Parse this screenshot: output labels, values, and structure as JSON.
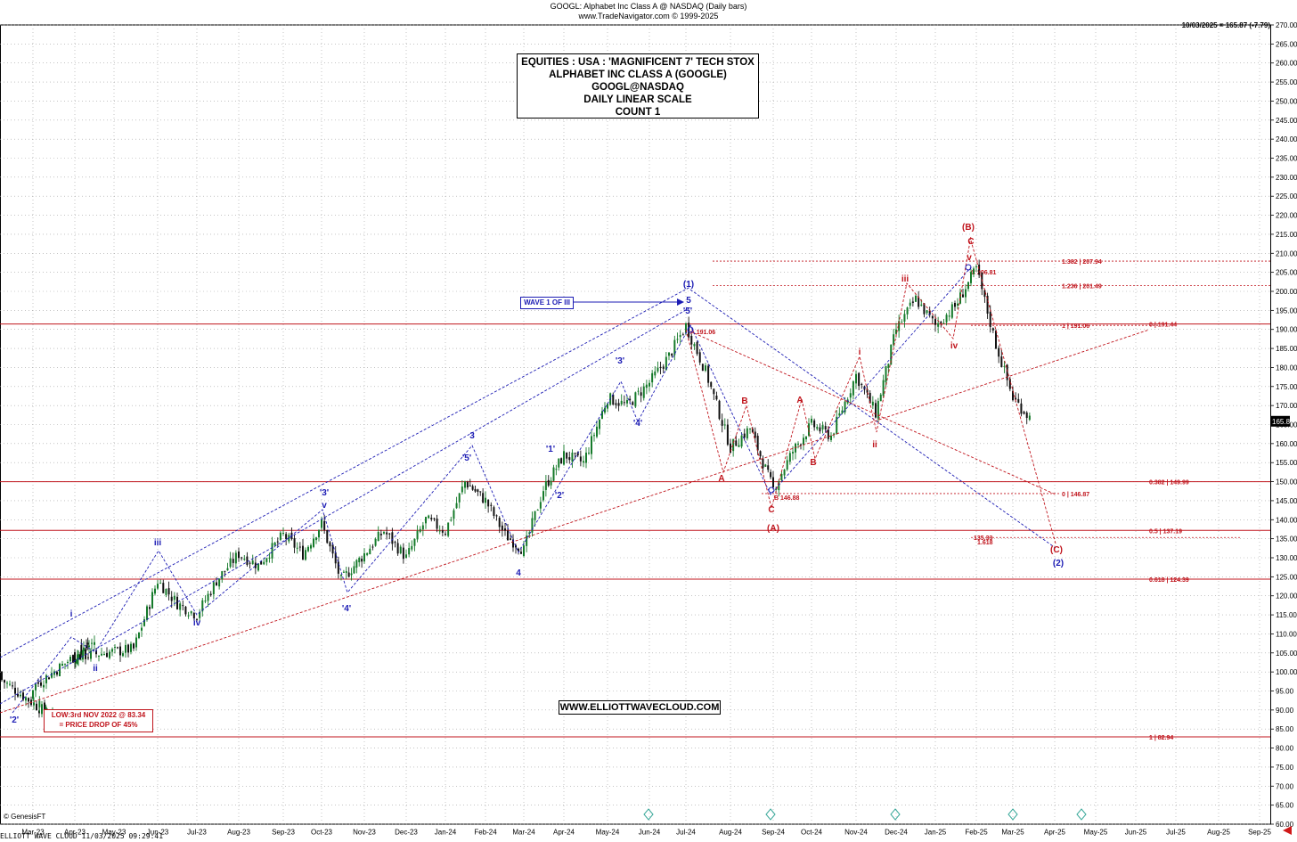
{
  "header": {
    "line1": "GOOGL:  Alphabet Inc Class A @ NASDAQ  (Daily bars)",
    "line2": "www.TradeNavigator.com © 1999-2025",
    "last_price_line": "10/03/2025 = 165.87 (-7.79)"
  },
  "title_box": {
    "line1": "EQUITIES : USA : 'MAGNIFICENT 7' TECH STOX",
    "line2": "ALPHABET INC CLASS A (GOOGLE)",
    "line3": "GOOGL@NASDAQ",
    "line4": "DAILY LINEAR SCALE",
    "line5": "COUNT 1"
  },
  "wave_callout": "WAVE 1 OF III",
  "low_callout": {
    "line1": "LOW:3rd NOV 2022 @ 83.34",
    "line2": "= PRICE DROP OF 45%"
  },
  "website": "WWW.ELLIOTTWAVECLOUD.COM",
  "footer": {
    "left": "ELLIOTT WAVE CLOUD    11/03/2025 09:29:41",
    "credit": "© GenesisFT"
  },
  "colors": {
    "bull": "#157a2a",
    "bear": "#111111",
    "wave_blue": "#1c1cb4",
    "wave_red": "#c0141c",
    "grid": "#a0a0a0"
  },
  "chart_data": {
    "type": "candlestick",
    "ylim": [
      60,
      270
    ],
    "y_ticks": [
      60,
      65,
      70,
      75,
      80,
      85,
      90,
      95,
      100,
      105,
      110,
      115,
      120,
      125,
      130,
      135,
      140,
      145,
      150,
      155,
      160,
      165,
      170,
      175,
      180,
      185,
      190,
      195,
      200,
      205,
      210,
      215,
      220,
      225,
      230,
      235,
      240,
      245,
      250,
      255,
      260,
      265,
      270
    ],
    "x_tick_labels": [
      "Mar-23",
      "Apr-23",
      "May-23",
      "Jun-23",
      "Jul-23",
      "Aug-23",
      "Sep-23",
      "Oct-23",
      "Nov-23",
      "Dec-23",
      "Jan-24",
      "Feb-24",
      "Mar-24",
      "Apr-24",
      "May-24",
      "Jun-24",
      "Jul-24",
      "Aug-24",
      "Sep-24",
      "Oct-24",
      "Nov-24",
      "Dec-24",
      "Jan-25",
      "Feb-25",
      "Mar-25",
      "Apr-25",
      "May-25",
      "Jun-25",
      "Jul-25",
      "Aug-25",
      "Sep-25"
    ],
    "last_price": 165.87,
    "last_price_label": "165.87",
    "price_path": [
      [
        "Feb-23",
        100
      ],
      [
        "Mar-23",
        88
      ],
      [
        "Mar-23",
        96
      ],
      [
        "Apr-23",
        108
      ],
      [
        "Apr-23",
        104
      ],
      [
        "May-23",
        106
      ],
      [
        "Jun-23",
        124
      ],
      [
        "Jun-23",
        118
      ],
      [
        "Jul-23",
        115
      ],
      [
        "Jul-23",
        124
      ],
      [
        "Aug-23",
        131
      ],
      [
        "Aug-23",
        128
      ],
      [
        "Sep-23",
        136
      ],
      [
        "Sep-23",
        131
      ],
      [
        "Oct-23",
        139
      ],
      [
        "Oct-23",
        124
      ],
      [
        "Nov-23",
        131
      ],
      [
        "Nov-23",
        137
      ],
      [
        "Dec-23",
        130
      ],
      [
        "Dec-23",
        140
      ],
      [
        "Jan-24",
        137
      ],
      [
        "Jan-24",
        150
      ],
      [
        "Feb-24",
        145
      ],
      [
        "Feb-24",
        136
      ],
      [
        "Mar-24",
        132
      ],
      [
        "Mar-24",
        148
      ],
      [
        "Apr-24",
        157
      ],
      [
        "Apr-24",
        155
      ],
      [
        "May-24",
        172
      ],
      [
        "May-24",
        170
      ],
      [
        "Jun-24",
        176
      ],
      [
        "Jun-24",
        183
      ],
      [
        "Jul-24",
        191
      ],
      [
        "Jul-24",
        179
      ],
      [
        "Aug-24",
        159
      ],
      [
        "Aug-24",
        164
      ],
      [
        "Sep-24",
        148
      ],
      [
        "Sep-24",
        158
      ],
      [
        "Oct-24",
        165
      ],
      [
        "Oct-24",
        162
      ],
      [
        "Nov-24",
        178
      ],
      [
        "Nov-24",
        168
      ],
      [
        "Dec-24",
        190
      ],
      [
        "Dec-24",
        198
      ],
      [
        "Jan-25",
        191
      ],
      [
        "Jan-25",
        196
      ],
      [
        "Feb-25",
        206
      ],
      [
        "Feb-25",
        186
      ],
      [
        "Mar-25",
        172
      ],
      [
        "Mar-25",
        166
      ]
    ],
    "levels": [
      {
        "price": 191.44,
        "label": "0 | 191.44",
        "full": true
      },
      {
        "price": 149.99,
        "label": "0.382 | 149.99",
        "full": true
      },
      {
        "price": 137.19,
        "label": "0.5 | 137.19",
        "full": true
      },
      {
        "price": 124.39,
        "label": "0.618 | 124.39",
        "full": true
      },
      {
        "price": 82.94,
        "label": "1 | 82.94",
        "full": true
      },
      {
        "price": 207.94,
        "label": "1.382 | 207.94",
        "full": false
      },
      {
        "price": 201.49,
        "label": "1.236 | 201.49",
        "full": false
      },
      {
        "price": 191.06,
        "label": "1 | 191.06",
        "full": false
      },
      {
        "price": 146.87,
        "label": "0 | 146.87",
        "full": false
      },
      {
        "price": 135.33,
        "label": "135.33",
        "full": false
      }
    ],
    "extra_labels": [
      "1.618",
      "A 191.06",
      "B 146.88",
      "C 206.81"
    ],
    "blue_wave_labels": [
      "'2'",
      "i",
      "ii",
      "iii",
      "iv",
      "v",
      "'3'",
      "'4'",
      "3",
      "'5'",
      "4",
      "'1'",
      "'2'",
      "'3'",
      "'4'",
      "'5'",
      "5",
      "(1)",
      "(2)"
    ],
    "red_wave_labels": [
      "A",
      "B",
      "C",
      "(A)",
      "A",
      "B",
      "i",
      "ii",
      "iii",
      "iv",
      "v",
      "C",
      "(B)",
      "(C)"
    ]
  }
}
